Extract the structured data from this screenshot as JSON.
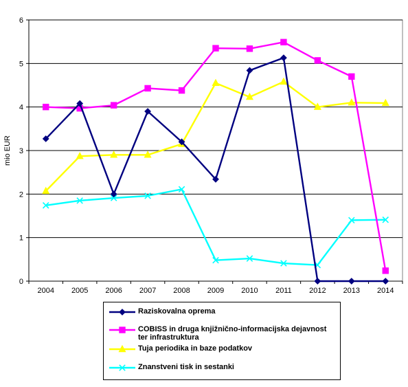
{
  "chart_data": {
    "type": "line",
    "title": "",
    "xlabel": "",
    "ylabel": "mio EUR",
    "ylim": [
      0,
      6
    ],
    "yticks": [
      "0",
      "1",
      "2",
      "3",
      "4",
      "5",
      "6"
    ],
    "grid": true,
    "legend_position": "bottom",
    "categories": [
      "2004",
      "2005",
      "2006",
      "2007",
      "2008",
      "2009",
      "2010",
      "2011",
      "2012",
      "2013",
      "2014"
    ],
    "series": [
      {
        "name": "Raziskovalna oprema",
        "color": "#000080",
        "marker": "diamond",
        "values": [
          3.27,
          4.08,
          2.0,
          3.9,
          3.2,
          2.34,
          4.84,
          5.13,
          0.0,
          0.0,
          0.0
        ]
      },
      {
        "name": "COBISS in druga knjižnično-informacijska dejavnost ter infrastruktura",
        "color": "#ff00ff",
        "marker": "square",
        "values": [
          4.0,
          3.97,
          4.04,
          4.43,
          4.38,
          5.35,
          5.34,
          5.49,
          5.07,
          4.7,
          0.24
        ]
      },
      {
        "name": "Tuja periodika in baze podatkov",
        "color": "#ffff00",
        "marker": "triangle",
        "values": [
          2.07,
          2.87,
          2.9,
          2.9,
          3.15,
          4.55,
          4.23,
          4.58,
          4.0,
          4.1,
          4.09
        ]
      },
      {
        "name": "Znanstveni tisk in sestanki",
        "color": "#00ffff",
        "marker": "x",
        "values": [
          1.74,
          1.85,
          1.91,
          1.96,
          2.11,
          0.48,
          0.52,
          0.41,
          0.37,
          1.4,
          1.41
        ]
      }
    ]
  }
}
